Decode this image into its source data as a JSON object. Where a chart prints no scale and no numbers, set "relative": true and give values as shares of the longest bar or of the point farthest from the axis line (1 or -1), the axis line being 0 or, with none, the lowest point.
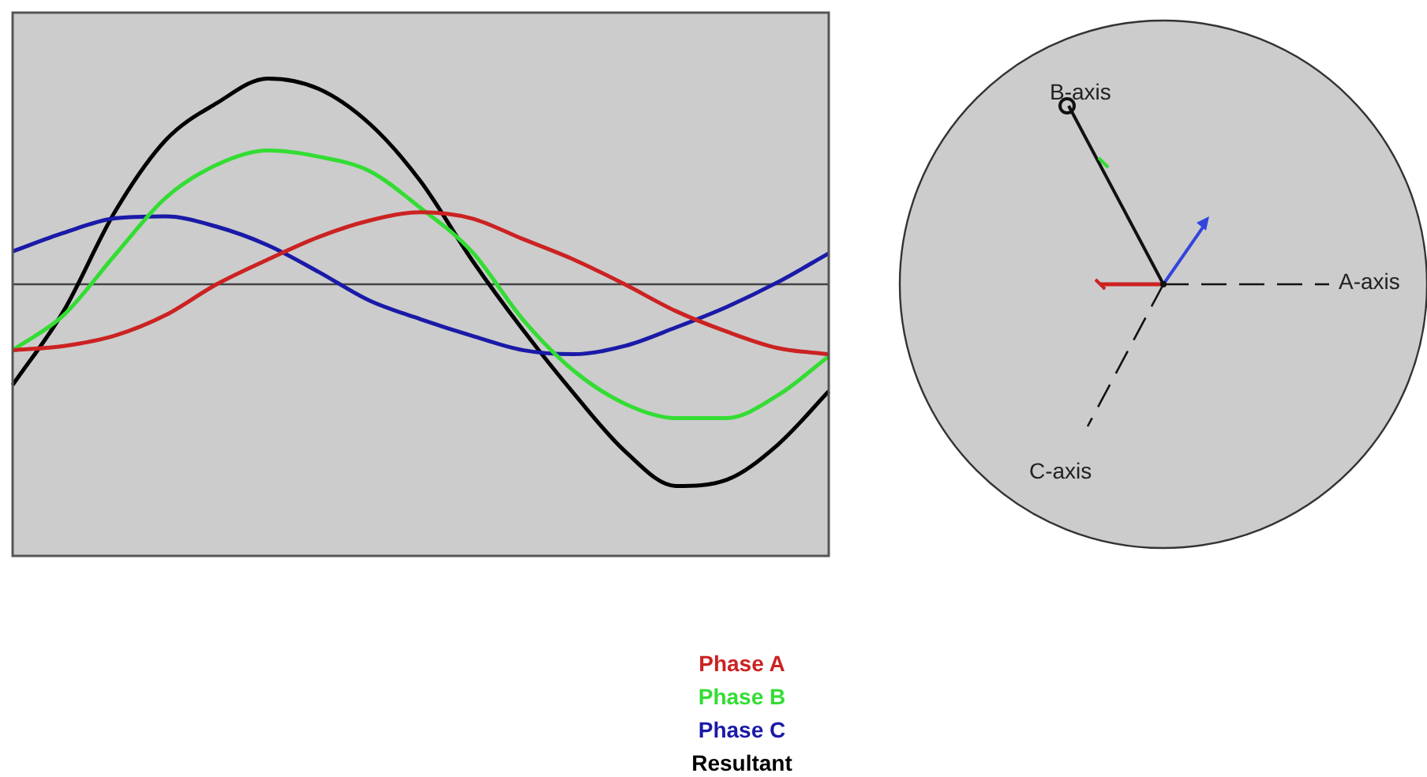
{
  "chart_data": [
    {
      "type": "line",
      "relative": true,
      "legend": "bottom",
      "categories": [
        null,
        null,
        null,
        null,
        null,
        null,
        null,
        null,
        null,
        null,
        null,
        null,
        null,
        null,
        null,
        null,
        null
      ],
      "series": [
        {
          "name": "Phase A",
          "color": "#cc2222",
          "values": [
            -0.32,
            -0.3,
            -0.25,
            -0.15,
            0,
            0.12,
            0.23,
            0.31,
            0.35,
            0.32,
            0.22,
            0.12,
            0,
            -0.13,
            -0.23,
            -0.31,
            -0.34
          ]
        },
        {
          "name": "Phase B",
          "color": "#33dd33",
          "values": [
            -0.32,
            -0.15,
            0.14,
            0.42,
            0.58,
            0.65,
            0.62,
            0.55,
            0.37,
            0.16,
            -0.17,
            -0.42,
            -0.58,
            -0.65,
            -0.65,
            -0.54,
            -0.35
          ]
        },
        {
          "name": "Phase C",
          "color": "#1a1aa8",
          "values": [
            0.16,
            0.25,
            0.32,
            0.33,
            0.28,
            0.19,
            0.06,
            -0.08,
            -0.17,
            -0.25,
            -0.32,
            -0.34,
            -0.3,
            -0.21,
            -0.11,
            0.01,
            0.15
          ]
        },
        {
          "name": "Resultant",
          "color": "#000000",
          "values": [
            -0.49,
            -0.13,
            0.35,
            0.7,
            0.88,
            1,
            0.95,
            0.78,
            0.5,
            0.12,
            -0.22,
            -0.53,
            -0.81,
            -0.98,
            -0.95,
            -0.78,
            -0.52
          ]
        }
      ]
    },
    {
      "type": "other",
      "annotations": [
        "B-axis",
        "A-axis",
        "C-axis"
      ]
    }
  ]
}
